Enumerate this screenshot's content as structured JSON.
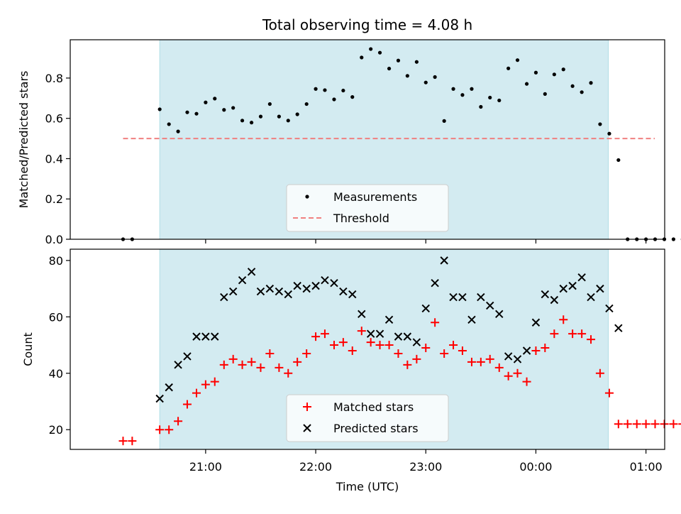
{
  "figure": {
    "title": "Total observing time = 4.08 h",
    "xlabel": "Time (UTC)",
    "colors": {
      "shade": "#d3ebf1",
      "shade_edge": "#b0dde6",
      "threshold": "#f08080",
      "measurement": "#000000",
      "matched": "#ff0000",
      "predicted": "#000000"
    }
  },
  "chart_data": [
    {
      "type": "scatter",
      "ylabel": "Matched/Predicted stars",
      "x_unit": "hours since 20:00 UTC (display clock)",
      "xlim": [
        19.77,
        25.17
      ],
      "ylim": [
        0.0,
        0.99
      ],
      "yticks": [
        0.0,
        0.2,
        0.4,
        0.6,
        0.8
      ],
      "ytick_labels": [
        "0.0",
        "0.2",
        "0.4",
        "0.6",
        "0.8"
      ],
      "shaded_interval": [
        20.583,
        24.658
      ],
      "threshold": {
        "name": "Threshold",
        "value": 0.5,
        "x_range": [
          20.25,
          25.08
        ]
      },
      "legend": {
        "placement": "lower-center",
        "entries": [
          "Measurements",
          "Threshold"
        ]
      },
      "series": [
        {
          "name": "Measurements",
          "points": [
            [
              20.25,
              0.0
            ],
            [
              20.333,
              0.0
            ],
            [
              20.583,
              0.645
            ],
            [
              20.667,
              0.571
            ],
            [
              20.75,
              0.535
            ],
            [
              20.833,
              0.63
            ],
            [
              20.917,
              0.623
            ],
            [
              21.0,
              0.679
            ],
            [
              21.083,
              0.698
            ],
            [
              21.167,
              0.642
            ],
            [
              21.25,
              0.652
            ],
            [
              21.333,
              0.589
            ],
            [
              21.417,
              0.579
            ],
            [
              21.5,
              0.609
            ],
            [
              21.583,
              0.671
            ],
            [
              21.667,
              0.609
            ],
            [
              21.75,
              0.589
            ],
            [
              21.833,
              0.62
            ],
            [
              21.917,
              0.671
            ],
            [
              22.0,
              0.746
            ],
            [
              22.083,
              0.74
            ],
            [
              22.167,
              0.694
            ],
            [
              22.25,
              0.738
            ],
            [
              22.333,
              0.706
            ],
            [
              22.417,
              0.902
            ],
            [
              22.5,
              0.944
            ],
            [
              22.583,
              0.926
            ],
            [
              22.667,
              0.847
            ],
            [
              22.75,
              0.887
            ],
            [
              22.833,
              0.811
            ],
            [
              22.917,
              0.88
            ],
            [
              23.0,
              0.778
            ],
            [
              23.083,
              0.805
            ],
            [
              23.167,
              0.587
            ],
            [
              23.25,
              0.746
            ],
            [
              23.333,
              0.716
            ],
            [
              23.417,
              0.746
            ],
            [
              23.5,
              0.657
            ],
            [
              23.583,
              0.703
            ],
            [
              23.667,
              0.689
            ],
            [
              23.75,
              0.848
            ],
            [
              23.833,
              0.889
            ],
            [
              23.917,
              0.771
            ],
            [
              24.0,
              0.827
            ],
            [
              24.083,
              0.721
            ],
            [
              24.167,
              0.818
            ],
            [
              24.25,
              0.843
            ],
            [
              24.333,
              0.76
            ],
            [
              24.417,
              0.73
            ],
            [
              24.5,
              0.776
            ],
            [
              24.583,
              0.571
            ],
            [
              24.667,
              0.524
            ],
            [
              24.75,
              0.393
            ],
            [
              24.833,
              0.0
            ],
            [
              24.917,
              0.0
            ],
            [
              25.0,
              0.0
            ],
            [
              25.083,
              0.0
            ],
            [
              25.167,
              0.0
            ],
            [
              25.25,
              0.0
            ],
            [
              25.333,
              0.0
            ]
          ]
        }
      ]
    },
    {
      "type": "scatter",
      "ylabel": "Count",
      "xlim": [
        19.77,
        25.17
      ],
      "ylim": [
        13,
        84
      ],
      "yticks": [
        20,
        40,
        60,
        80
      ],
      "ytick_labels": [
        "20",
        "40",
        "60",
        "80"
      ],
      "xticks": [
        21,
        22,
        23,
        24,
        25
      ],
      "xtick_labels": [
        "21:00",
        "22:00",
        "23:00",
        "00:00",
        "01:00"
      ],
      "shaded_interval": [
        20.583,
        24.658
      ],
      "legend": {
        "placement": "lower-center",
        "entries": [
          "Matched stars",
          "Predicted stars"
        ]
      },
      "series": [
        {
          "name": "Matched stars",
          "marker": "+",
          "points": [
            [
              20.25,
              16
            ],
            [
              20.333,
              16
            ],
            [
              20.583,
              20
            ],
            [
              20.667,
              20
            ],
            [
              20.75,
              23
            ],
            [
              20.833,
              29
            ],
            [
              20.917,
              33
            ],
            [
              21.0,
              36
            ],
            [
              21.083,
              37
            ],
            [
              21.167,
              43
            ],
            [
              21.25,
              45
            ],
            [
              21.333,
              43
            ],
            [
              21.417,
              44
            ],
            [
              21.5,
              42
            ],
            [
              21.583,
              47
            ],
            [
              21.667,
              42
            ],
            [
              21.75,
              40
            ],
            [
              21.833,
              44
            ],
            [
              21.917,
              47
            ],
            [
              22.0,
              53
            ],
            [
              22.083,
              54
            ],
            [
              22.167,
              50
            ],
            [
              22.25,
              51
            ],
            [
              22.333,
              48
            ],
            [
              22.417,
              55
            ],
            [
              22.5,
              51
            ],
            [
              22.583,
              50
            ],
            [
              22.667,
              50
            ],
            [
              22.75,
              47
            ],
            [
              22.833,
              43
            ],
            [
              22.917,
              45
            ],
            [
              23.0,
              49
            ],
            [
              23.083,
              58
            ],
            [
              23.167,
              47
            ],
            [
              23.25,
              50
            ],
            [
              23.333,
              48
            ],
            [
              23.417,
              44
            ],
            [
              23.5,
              44
            ],
            [
              23.583,
              45
            ],
            [
              23.667,
              42
            ],
            [
              23.75,
              39
            ],
            [
              23.833,
              40
            ],
            [
              23.917,
              37
            ],
            [
              24.0,
              48
            ],
            [
              24.083,
              49
            ],
            [
              24.167,
              54
            ],
            [
              24.25,
              59
            ],
            [
              24.333,
              54
            ],
            [
              24.417,
              54
            ],
            [
              24.5,
              52
            ],
            [
              24.583,
              40
            ],
            [
              24.667,
              33
            ],
            [
              24.75,
              22
            ],
            [
              24.833,
              22
            ],
            [
              24.917,
              22
            ],
            [
              25.0,
              22
            ],
            [
              25.083,
              22
            ],
            [
              25.167,
              22
            ],
            [
              25.25,
              22
            ],
            [
              25.333,
              22
            ]
          ]
        },
        {
          "name": "Predicted stars",
          "marker": "x",
          "points": [
            [
              20.583,
              31
            ],
            [
              20.667,
              35
            ],
            [
              20.75,
              43
            ],
            [
              20.833,
              46
            ],
            [
              20.917,
              53
            ],
            [
              21.0,
              53
            ],
            [
              21.083,
              53
            ],
            [
              21.167,
              67
            ],
            [
              21.25,
              69
            ],
            [
              21.333,
              73
            ],
            [
              21.417,
              76
            ],
            [
              21.5,
              69
            ],
            [
              21.583,
              70
            ],
            [
              21.667,
              69
            ],
            [
              21.75,
              68
            ],
            [
              21.833,
              71
            ],
            [
              21.917,
              70
            ],
            [
              22.0,
              71
            ],
            [
              22.083,
              73
            ],
            [
              22.167,
              72
            ],
            [
              22.25,
              69
            ],
            [
              22.333,
              68
            ],
            [
              22.417,
              61
            ],
            [
              22.5,
              54
            ],
            [
              22.583,
              54
            ],
            [
              22.667,
              59
            ],
            [
              22.75,
              53
            ],
            [
              22.833,
              53
            ],
            [
              22.917,
              51
            ],
            [
              23.0,
              63
            ],
            [
              23.083,
              72
            ],
            [
              23.167,
              80
            ],
            [
              23.25,
              67
            ],
            [
              23.333,
              67
            ],
            [
              23.417,
              59
            ],
            [
              23.5,
              67
            ],
            [
              23.583,
              64
            ],
            [
              23.667,
              61
            ],
            [
              23.75,
              46
            ],
            [
              23.833,
              45
            ],
            [
              23.917,
              48
            ],
            [
              24.0,
              58
            ],
            [
              24.083,
              68
            ],
            [
              24.167,
              66
            ],
            [
              24.25,
              70
            ],
            [
              24.333,
              71
            ],
            [
              24.417,
              74
            ],
            [
              24.5,
              67
            ],
            [
              24.583,
              70
            ],
            [
              24.667,
              63
            ],
            [
              24.75,
              56
            ]
          ]
        }
      ]
    }
  ]
}
